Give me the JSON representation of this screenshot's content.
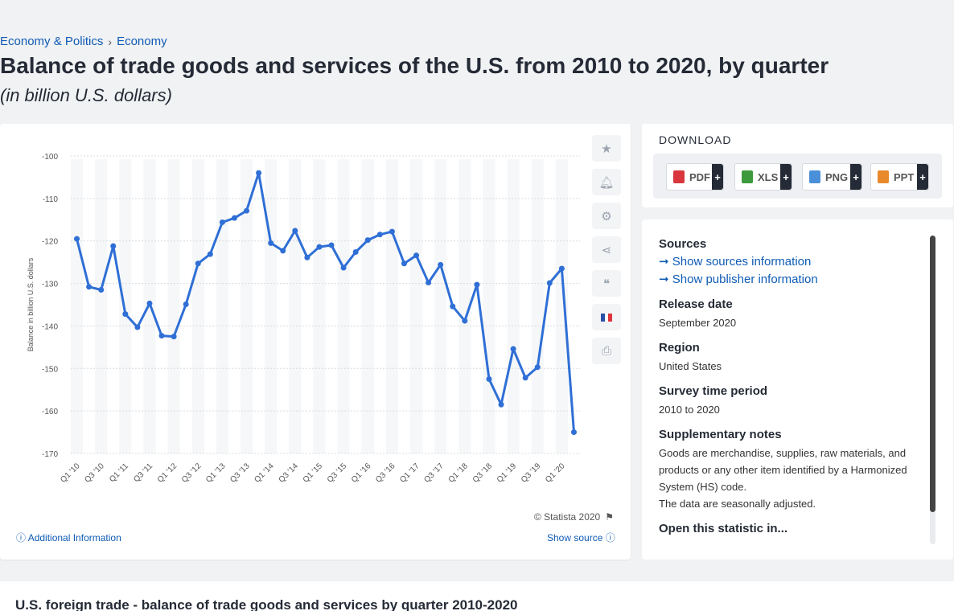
{
  "breadcrumb": {
    "level1": "Economy & Politics",
    "level2": "Economy"
  },
  "title": "Balance of trade goods and services of the U.S. from 2010 to 2020, by quarter",
  "subtitle": "(in billion U.S. dollars)",
  "chart_tools": {
    "icons": [
      "star-icon",
      "bell-icon",
      "gear-icon",
      "share-icon",
      "quote-icon",
      "flag-fr-icon",
      "print-icon"
    ]
  },
  "chart_footer": {
    "copyright": "© Statista 2020",
    "additional_info": "Additional Information",
    "show_source": "Show source"
  },
  "download": {
    "title": "DOWNLOAD",
    "buttons": [
      {
        "label": "PDF",
        "color": "#d9363e"
      },
      {
        "label": "XLS",
        "color": "#3c9a3c"
      },
      {
        "label": "PNG",
        "color": "#4a90d9"
      },
      {
        "label": "PPT",
        "color": "#e8892b"
      }
    ],
    "plus": "+"
  },
  "info": {
    "sources_heading": "Sources",
    "show_sources": "Show sources information",
    "show_publisher": "Show publisher information",
    "release_heading": "Release date",
    "release_value": "September 2020",
    "region_heading": "Region",
    "region_value": "United States",
    "survey_heading": "Survey time period",
    "survey_value": "2010 to 2020",
    "notes_heading": "Supplementary notes",
    "notes_value_1": "Goods are merchandise, supplies, raw materials, and products or any other item identified by a Harmonized System (HS) code.",
    "notes_value_2": "The data are seasonally adjusted.",
    "open_heading": "Open this statistic in..."
  },
  "bottom": {
    "title": "U.S. foreign trade - balance of trade goods and services by quarter 2010-2020"
  },
  "chart_data": {
    "type": "line",
    "ylabel": "Balance in billion U.S. dollars",
    "ylim": [
      -170,
      -100
    ],
    "yticks": [
      -100,
      -110,
      -120,
      -130,
      -140,
      -150,
      -160,
      -170
    ],
    "grid": true,
    "line_color": "#2f6fd6",
    "x_labels": [
      "Q1 '10",
      "Q3 '10",
      "Q1 '11",
      "Q3 '11",
      "Q1 '12",
      "Q3 '12",
      "Q1 '13",
      "Q3 '13",
      "Q1 '14",
      "Q3 '14",
      "Q1 '15",
      "Q3 '15",
      "Q1 '16",
      "Q3 '16",
      "Q1 '17",
      "Q3 '17",
      "Q1 '18",
      "Q3 '18",
      "Q1 '19",
      "Q3 '19",
      "Q1 '20"
    ],
    "values": [
      -119.5,
      -130.8,
      -131.5,
      -121.2,
      -137.2,
      -140.3,
      -134.7,
      -142.3,
      -142.5,
      -134.9,
      -125.3,
      -123.1,
      -115.6,
      -114.6,
      -112.9,
      -104.0,
      -120.5,
      -122.3,
      -117.6,
      -123.9,
      -121.4,
      -121.0,
      -126.3,
      -122.6,
      -119.8,
      -118.5,
      -117.8,
      -125.3,
      -123.4,
      -129.8,
      -125.6,
      -135.4,
      -138.8,
      -130.3,
      -152.5,
      -158.5,
      -145.4,
      -152.2,
      -149.7,
      -129.9,
      -126.5,
      -165.0
    ]
  }
}
